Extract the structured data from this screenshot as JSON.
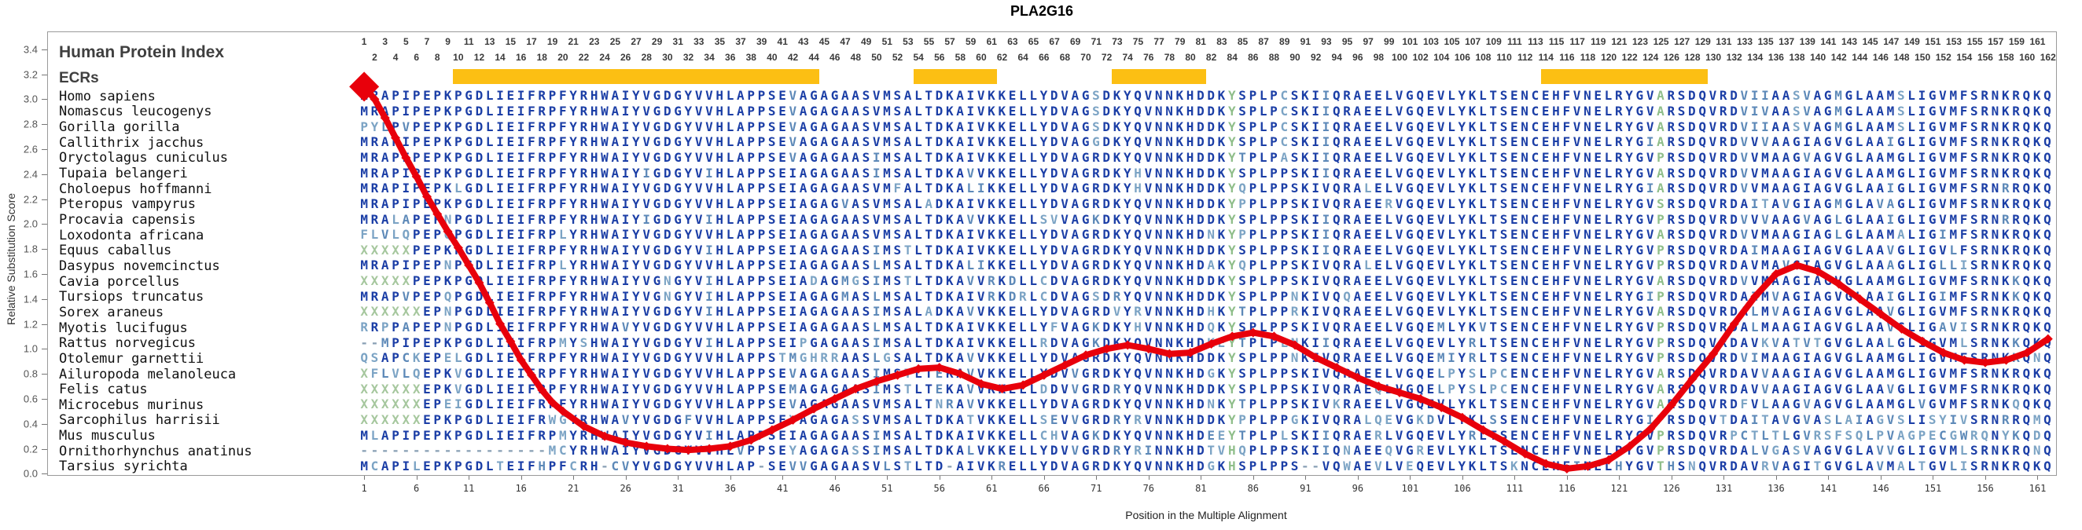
{
  "title": "PLA2G16",
  "left_panel": {
    "header": "Human Protein Index",
    "ecrs_label": "ECRs"
  },
  "top_index": {
    "from": 1,
    "to": 162
  },
  "y_axis": {
    "label": "Relative Substitution Score",
    "ticks": [
      "3.4",
      "3.2",
      "3.0",
      "2.8",
      "2.6",
      "2.4",
      "2.2",
      "2.0",
      "1.8",
      "1.6",
      "1.4",
      "1.2",
      "1.0",
      "0.8",
      "0.6",
      "0.4",
      "0.2",
      "0.0"
    ]
  },
  "x_axis": {
    "label": "Position in the Multiple Alignment",
    "ticks": [
      1,
      6,
      11,
      16,
      21,
      26,
      31,
      36,
      41,
      46,
      51,
      56,
      61,
      66,
      71,
      76,
      81,
      86,
      91,
      96,
      101,
      106,
      111,
      116,
      121,
      126,
      131,
      136,
      141,
      146,
      151,
      156,
      161
    ]
  },
  "ecrs": {
    "color": "#fcbf13",
    "regions": [
      {
        "start": 10,
        "end": 44
      },
      {
        "start": 54,
        "end": 61
      },
      {
        "start": 73,
        "end": 81
      },
      {
        "start": 114,
        "end": 129
      }
    ]
  },
  "colors": {
    "seq_dark": "#1b3ea6",
    "seq_mid": "#5d89b8",
    "seq_other": "#7ba3c4",
    "gap": "#8aa0b5",
    "unknown_x": "#a6c79e",
    "green_col": "#8fbe8a",
    "curve": "#e8000b"
  },
  "green_columns": [
    84,
    125
  ],
  "alignment": {
    "columns": 162,
    "species": [
      {
        "name": "Homo sapiens",
        "seq": "MRAPIPEPKPGDLIEIFRPFYRHWAIYVGDGYVVHLAPPSEVAGAGAASVMSALTDKAIVKKELLYDVAGSDKYQVNNKHDDKYSPLPCSKIIQRAEELVGQEVLYKLTSENCEHFVNELRYGVARSDQVRDVIIAASVAGMGLAAMSLIGVMFSRNKRQKQ"
      },
      {
        "name": "Nomascus leucogenys",
        "seq": "MRAPIPEPKPGDLIEIFRPFYRHWAIYVGDGYVVHLAPPSEVAGAGAASVMSALTDKAIVKKELLYDVAGSDKYQVNNKHDDKYSPLPCSKIIQRAEELVGQEVLYKLTSENCEHFVNELRYGVARSDQVRDVIVAASVAGMGLAAMSLIGVMFSRNKRQKQ"
      },
      {
        "name": "Gorilla gorilla",
        "seq": "PYLPVPEPKPGDLIEIFRPFYRHWAIYVGDGYVVHLAPPSEVAGAGAASVMSALTDKAIVKKELLYDVAGSDKYQVNNKHDDKYSPLPCSKIIQRAEELVGQEVLYKLTSENCEHFVNELRYGVARSDQVRDVIIAASVAGMGLAAMSLIGVMFSRNKRQKQ"
      },
      {
        "name": "Callithrix jacchus",
        "seq": "MRAPIPEPKPGDLIEIFRPFYRHWAIYVGDGYVVHLAPPSEVAGAGAASVMSALTDKAIVKKELLYDVAGGDKYQVNNKHDDKYSPLPCSKIIQRAEELVGQEVLYKLTSENCEHFVNELRYGIARSDQVRDVVVAAGIAGVGLAAIGLIGVMFSRNKRQKQ"
      },
      {
        "name": "Oryctolagus cuniculus",
        "seq": "MRAPIPEPKPGDLIEIFRPFYRHWAIYVGDGYVVHLAPPSEVAGAGAASIMSALTDKAIVKKELLYDVAGRDKYQVNNKHDDKYTPLPASKIIQRAEELVGQEVLYKLTSENCEHFVNELRYGVPRSDQVRDVVMAAGVAGVGLAAMGLIGVMFSRNKRQKQ"
      },
      {
        "name": "Tupaia belangeri",
        "seq": "MRAPIPEPKPGDLIEIFRPFYRHWAIYIGDGYVIHLAPPSEIAGAGAASIMSALTDKAVVKKELLYDVAGRDKYHVNNKHDDKYSPLPPSKIIQRAEELVGQEVLYKLTSENCEHFVNELRYGVARSDQVRDVVMAAGIAGVGLAAMGLIGVMFSRNKRQKQ"
      },
      {
        "name": "Choloepus hoffmanni",
        "seq": "MRAPIPEPKLGDLIEIFRPFYRHWAIYVGDGYVVHLAPPSEIAGAGAASVMFALTDKALIKKELLYDVAGRDKYHVNNKHDDKYQPLPPSKIVQRALELVGQEVLYKLTSENCEHFVNELRYGIARSDQVRDVVMAAGIAGVGLAAIGLIGVMFSRNRRQKQ"
      },
      {
        "name": "Pteropus vampyrus",
        "seq": "MRAPIPEPKPGDLIEIFRPFYRHWAIYVGDGYVVHLAPPSEIAGAGVASVMSALADKAIVKKELLYDVAGRDKYQVNNKHDDKYPPLPPSKIVQRAEERVGQEVLYKLTSENCEHFVNELRYGVSRSDQVRDAITAVGIAGMGLAVAGLIGVMFSRNKRQKQ"
      },
      {
        "name": "Procavia capensis",
        "seq": "MRALAPEPNPGDLIEIFRPFYRHWAIYIGDGYVIHLAPPSEIAGAGAASVMSALTDKAVVKKELLSVVAGKDKYQVNNKHDDKYSPLPPSKIIQRAEELVGQEVLYKLTSENCEHFVNELRYGVPRSDQVRDVVVAAGVAGLGLAAIGLIGVMFSRNRRQKQ"
      },
      {
        "name": "Loxodonta africana",
        "seq": "FLVLQPEPQPGDLIEIFRPLYRHWAIYVGDGYVVHLAPPSEIAGAGAASVMSALTDKAIVKKELLYDVAGRDKYQVNNKHDNKYPPLPPSKIIQRAEELVGQEVLYKLTSENCEHFVNELRYGVARSDQVRDVVMAAGIAGLGLAAMALIGIMFSRNKRQKQ"
      },
      {
        "name": "Equus caballus",
        "seq": "XXXXXPEPKPGDLIEIFRPFYRHWAIYVGDGYVIHLAPPSEIAGAGAASIMSTLTDKAIVKKELLYDVAGRDKYQVNNKHDDKYSPLPPSKIIQRAEELVGQEVLYKLTSENCEHFVNELRYGVPRSDQVRDAIMAAGIAGVGLAAVGLIGVLFSRNKRQKQ"
      },
      {
        "name": "Dasypus novemcinctus",
        "seq": "MRAPIPEPNPGDLIEIFRPLYRHWAIYVGDGYVVHLAPPSEIAGAGAASLMSALTDKALIKKELLYDVAGRDKYQVNNKHDAKYQPLPPSKIVQRALELVGQEVLYKLTSENCEHFVNELRYGVPRSDQVRDAVMAVGIAGVGLAAAGLIGLLISRNKRQKQ"
      },
      {
        "name": "Cavia porcellus",
        "seq": "XXXXXPEPKPGDLIEIFRPFYRHWAIYVGNGYVIHLAPPSEIADAGMGSIMSTLTDKAVVRKDLLCDVAGRDKYQVNNKHDDKYSPLPPSKIVQRAEELVGQEVLYKLTSENCEHFVNELRYGVARSDQVRDVVMAAGIAGVGLAAMGLIGVMFSRNKKQKQ"
      },
      {
        "name": "Tursiops truncatus",
        "seq": "MRAPVPEPQPGDLIEIFRPFYRHWAIYVGNGYVIHLAPPSEIAGAGMASLMSALTDKAIVRKDRLCDVAGSDRYQVNNKHDDKYSPLPPNKIVQQAEELVGQEVLYKLTSENCEHFVNELRYGIPRSDQVRDAIMVAGIAGVGLAAIGLIGIMFSRNKKQKQ"
      },
      {
        "name": "Sorex araneus",
        "seq": "XXXXXXEPNPGDLIEIFRPFYRHWAIYVGDGYVIHLAPPSEIAGAGAASIMSALADKAVVKKELLYDVAGRDVYRVNNKHDHKYTPLPPRKIVQRAEELVGQEVLYKLTSENCEHFVNELRYGVARSDQVRDALMVAGIAGVGLAAVGLIGVMFSRNKRQKQ"
      },
      {
        "name": "Myotis lucifugus",
        "seq": "RRPPAPEPNPGDLIEIFRPFYRHWAVYVGDGYVVHLAPPSEIAGAGAASLMSALTDKAIVKKELLYFVAGKDKYHVNNKHDQKYSPLPPSKIVQRAEELVGQEMLYKVTSENCEHFVNELRYGVPRSDQVRDALMAAGIAGVGLAAVGLIGAVISRNKRQKQ"
      },
      {
        "name": "Rattus norvegicus",
        "seq": "--MPIPEPKPGDLIEIFRPMYSHWAIYVGDGYVIHLAPPSEIPGAGAASIMSALTDKAIVKKELLRDVAGKDKYQVNNKHDKEYTPLPLNKIIQRAEELVGQEVLYRLTSENCEHFVNELRYGVPRSDQVRDAVKVATVTGVGLAALGLIGVMLSRNKKQKQ"
      },
      {
        "name": "Otolemur garnettii",
        "seq": "QSAPCKEPELGDLIEIFRPFYRHWAIYVGDGYVVHLAPPSTMGHRRAASLGSALTDKAVVKKELLYDVAGRDKYQVNNKHDDKYSPLPPNKIVQRAEELVGQEMIYRLTSENCEHFVNELRYGVPRSDQVRDVIMAAGIAGVGLAAMGLIGVMFSRNKKQNQ"
      },
      {
        "name": "Ailuropoda melanoleuca",
        "seq": "XFLVLQEPKVGDLIEIFRPFYRHWAIYVGDGYVVHLAPPSEVAGAGAASIMSTLTEKAVVKKELLYDVVGRDKYQVNNKHDGKYSPLPPSKIVQRAEELVGQELPYSLPCENCEHFVNELRYGVARSDQVRDAVVAAGIAGVGLAAMGLIGVMFSRNKRQKQ"
      },
      {
        "name": "Felis catus",
        "seq": "XXXXXXEPKVGDLIEIFRPFYRHWAIYVGDGYVVHLAPPSEMAGAGAASIMSTLTEKAVVKKELLDDVVGRDRYQVNNKHDDKYSPLPPSKIVQRAEQLVGQELPYSLPCENCEHFVNELRYGVARSDQVRDAVVAAGIAGVGLAAVGLIGVMFSRNKRQKQ"
      },
      {
        "name": "Microcebus murinus",
        "seq": "XXXXXXEPEIGDLIEIFRPFYRHWAIYVGDGYVVHLAPPSEVAGAGAASVMSALTNRAVVKKELLYDVAGRDKYQVNNKHDNKYTPLPPSKIVKRAEELVGQEVLYKLTSENCEHFVNELRYGVARSDQVRDFVLAAGVAGVGLAAMGLVGVMFSRNKQQKQ"
      },
      {
        "name": "Sarcophilus harrisii",
        "seq": "XXXXXXEPKPGDLIEIFRWGYRHWAVYVGDGFVVHLAPPSEYAGAGASSVMSALTDKATVKKELLSEVVGRDRYRVNNKHDDKYPPLPPGKIVQRALQEVGKDVLYKLSSENCEHFVNELRYGIPRSDQVTDAITAVGVASLAIAGVSLISYIVSRNRRQMQ"
      },
      {
        "name": "Mus musculus",
        "seq": "MLAPIPEPKPGDLIEIFRPMYRHWAIYVGDGYVIHLAPPSEIAGAGAASIMSALTDKAIVKKELLCHVAGKDKYQVNNKHDEEYTPLPLSKIIQRAERLVGQEVLYRLTSENCEHFVNELRYGVPRSDQVRPCTLTLGVRSFSQLPVAGPECGWRQNYKQDQ"
      },
      {
        "name": "Ornithorhynchus anatinus",
        "seq": "------------------MCYRHWAIYVGDGYVVHLVPPSEYAGAGASSIMSALTDKALVKKELLYDVVGRDRYRINNKHDTVHQPLPPSKIIQNAEEQVGREVLYKLTSENCEHFVNELRYGVPRSDQVRDALVGASVAGVGLAVVGLIGVMLSRNKRQNQ"
      },
      {
        "name": "Tarsius syrichta",
        "seq": "MCAPILEPKPGDLTEIFHPFCRH-CVYVGDGYVVHLAP-SEVVGAGAASVLSTLTD-AIVKRELLYDVAGRDKYQVNNKHDGKHSPLPPS--VQWAEVLVEQEVLYKLTSKNCEHFINELHYGVTHSNQVRDAVRVAGITGVGLAVMALTGVLISRNKRQKQ"
      }
    ]
  },
  "chart_data": {
    "type": "line",
    "title": "PLA2G16",
    "xlabel": "Position in the Multiple Alignment",
    "ylabel": "Relative Substitution Score",
    "ylim": [
      0.0,
      3.4
    ],
    "xlim": [
      1,
      162
    ],
    "grid": false,
    "series_name": "Relative substitution score",
    "marker": "diamond",
    "points": [
      [
        1,
        3.1
      ],
      [
        2,
        3.0
      ],
      [
        3,
        2.85
      ],
      [
        4,
        2.69
      ],
      [
        5,
        2.53
      ],
      [
        6,
        2.38
      ],
      [
        7,
        2.22
      ],
      [
        8,
        2.08
      ],
      [
        9,
        1.94
      ],
      [
        10,
        1.81
      ],
      [
        11,
        1.67
      ],
      [
        12,
        1.53
      ],
      [
        13,
        1.37
      ],
      [
        14,
        1.2
      ],
      [
        15,
        1.06
      ],
      [
        16,
        0.91
      ],
      [
        17,
        0.79
      ],
      [
        18,
        0.67
      ],
      [
        19,
        0.57
      ],
      [
        20,
        0.5
      ],
      [
        22,
        0.38
      ],
      [
        24,
        0.3
      ],
      [
        26,
        0.25
      ],
      [
        28,
        0.22
      ],
      [
        30,
        0.2
      ],
      [
        32,
        0.19
      ],
      [
        34,
        0.2
      ],
      [
        36,
        0.22
      ],
      [
        38,
        0.27
      ],
      [
        40,
        0.35
      ],
      [
        42,
        0.43
      ],
      [
        44,
        0.52
      ],
      [
        46,
        0.6
      ],
      [
        48,
        0.68
      ],
      [
        50,
        0.74
      ],
      [
        52,
        0.79
      ],
      [
        54,
        0.84
      ],
      [
        56,
        0.85
      ],
      [
        58,
        0.8
      ],
      [
        60,
        0.72
      ],
      [
        62,
        0.68
      ],
      [
        64,
        0.71
      ],
      [
        66,
        0.79
      ],
      [
        68,
        0.87
      ],
      [
        70,
        0.95
      ],
      [
        72,
        1.0
      ],
      [
        74,
        1.03
      ],
      [
        76,
        1.0
      ],
      [
        78,
        0.96
      ],
      [
        80,
        0.97
      ],
      [
        82,
        1.04
      ],
      [
        84,
        1.1
      ],
      [
        86,
        1.13
      ],
      [
        88,
        1.1
      ],
      [
        90,
        1.03
      ],
      [
        92,
        0.93
      ],
      [
        94,
        0.85
      ],
      [
        96,
        0.77
      ],
      [
        98,
        0.7
      ],
      [
        100,
        0.65
      ],
      [
        102,
        0.6
      ],
      [
        104,
        0.53
      ],
      [
        106,
        0.45
      ],
      [
        108,
        0.35
      ],
      [
        110,
        0.26
      ],
      [
        112,
        0.16
      ],
      [
        114,
        0.08
      ],
      [
        116,
        0.04
      ],
      [
        118,
        0.06
      ],
      [
        120,
        0.11
      ],
      [
        122,
        0.22
      ],
      [
        124,
        0.36
      ],
      [
        126,
        0.55
      ],
      [
        128,
        0.76
      ],
      [
        130,
        0.96
      ],
      [
        132,
        1.2
      ],
      [
        134,
        1.42
      ],
      [
        136,
        1.6
      ],
      [
        138,
        1.67
      ],
      [
        140,
        1.62
      ],
      [
        142,
        1.52
      ],
      [
        144,
        1.4
      ],
      [
        146,
        1.28
      ],
      [
        148,
        1.16
      ],
      [
        150,
        1.06
      ],
      [
        152,
        0.97
      ],
      [
        154,
        0.91
      ],
      [
        156,
        0.89
      ],
      [
        158,
        0.91
      ],
      [
        160,
        0.97
      ],
      [
        162,
        1.08
      ]
    ]
  }
}
